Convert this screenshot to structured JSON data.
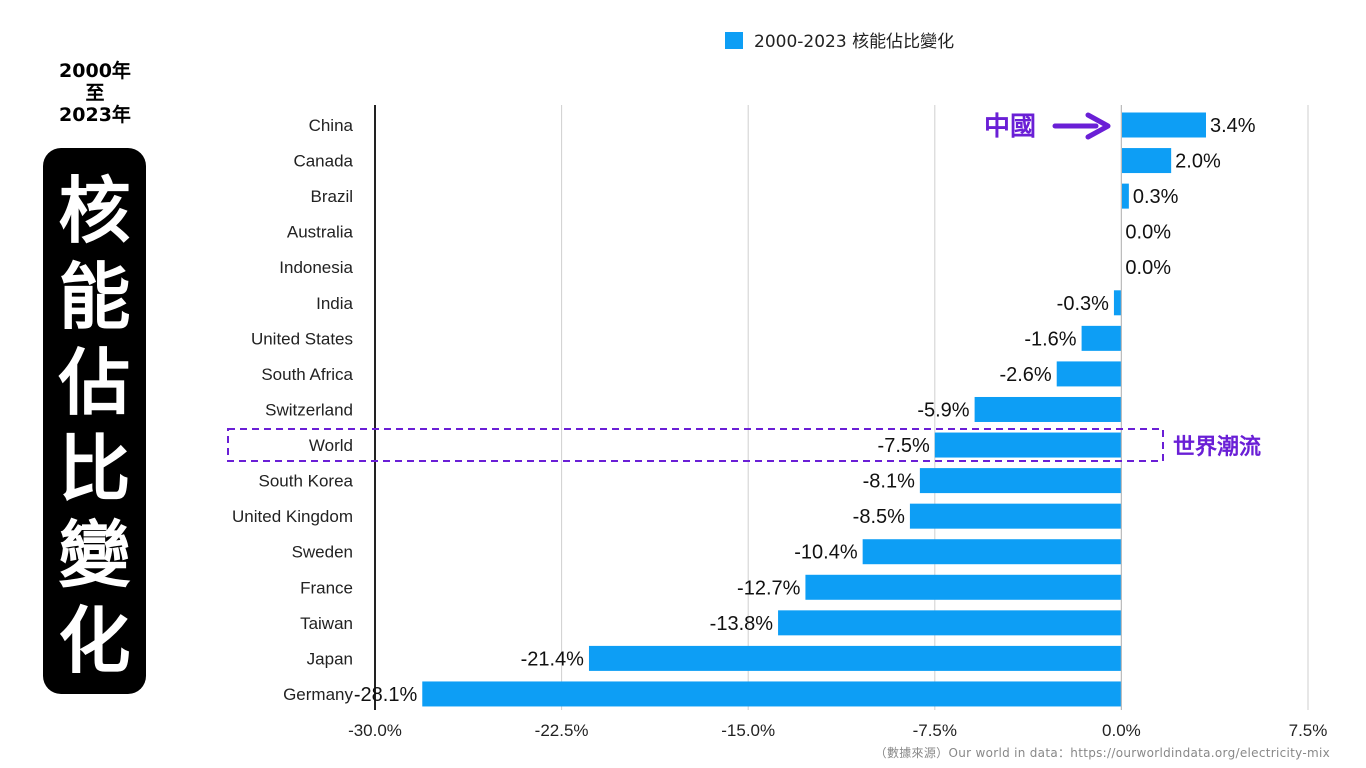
{
  "side": {
    "date_lines": [
      "2000年",
      "至",
      "2023年"
    ],
    "title_chars": [
      "核",
      "能",
      "佔",
      "比",
      "變",
      "化"
    ]
  },
  "annotations": {
    "china_label": "中國",
    "world_label": "世界潮流",
    "accent_color": "#6a1fd6"
  },
  "footer": {
    "source": "（數據來源）Our  world  in  data：https://ourworldindata.org/electricity-mix"
  },
  "chart_data": {
    "type": "bar",
    "orientation": "horizontal",
    "legend": {
      "label": "2000-2023 核能佔比變化",
      "position": "top-center"
    },
    "bar_color": "#0d9ef5",
    "categories": [
      "China",
      "Canada",
      "Brazil",
      "Australia",
      "Indonesia",
      "India",
      "United States",
      "South Africa",
      "Switzerland",
      "World",
      "South Korea",
      "United Kingdom",
      "Sweden",
      "France",
      "Taiwan",
      "Japan",
      "Germany"
    ],
    "values": [
      3.4,
      2.0,
      0.3,
      0.0,
      0.0,
      -0.3,
      -1.6,
      -2.6,
      -5.9,
      -7.5,
      -8.1,
      -8.5,
      -10.4,
      -12.7,
      -13.8,
      -21.4,
      -28.1
    ],
    "data_labels": [
      "3.4%",
      "2.0%",
      "0.3%",
      "0.0%",
      "0.0%",
      "-0.3%",
      "-1.6%",
      "-2.6%",
      "-5.9%",
      "-7.5%",
      "-8.1%",
      "-8.5%",
      "-10.4%",
      "-12.7%",
      "-13.8%",
      "-21.4%",
      "-28.1%"
    ],
    "x_ticks": [
      -30,
      -22.5,
      -15,
      -7.5,
      0,
      7.5
    ],
    "x_tick_labels": [
      "-30.0%",
      "-22.5%",
      "-15.0%",
      "-7.5%",
      "0.0%",
      "7.5%"
    ],
    "xlim": [
      -30,
      7.5
    ],
    "grid": true
  }
}
